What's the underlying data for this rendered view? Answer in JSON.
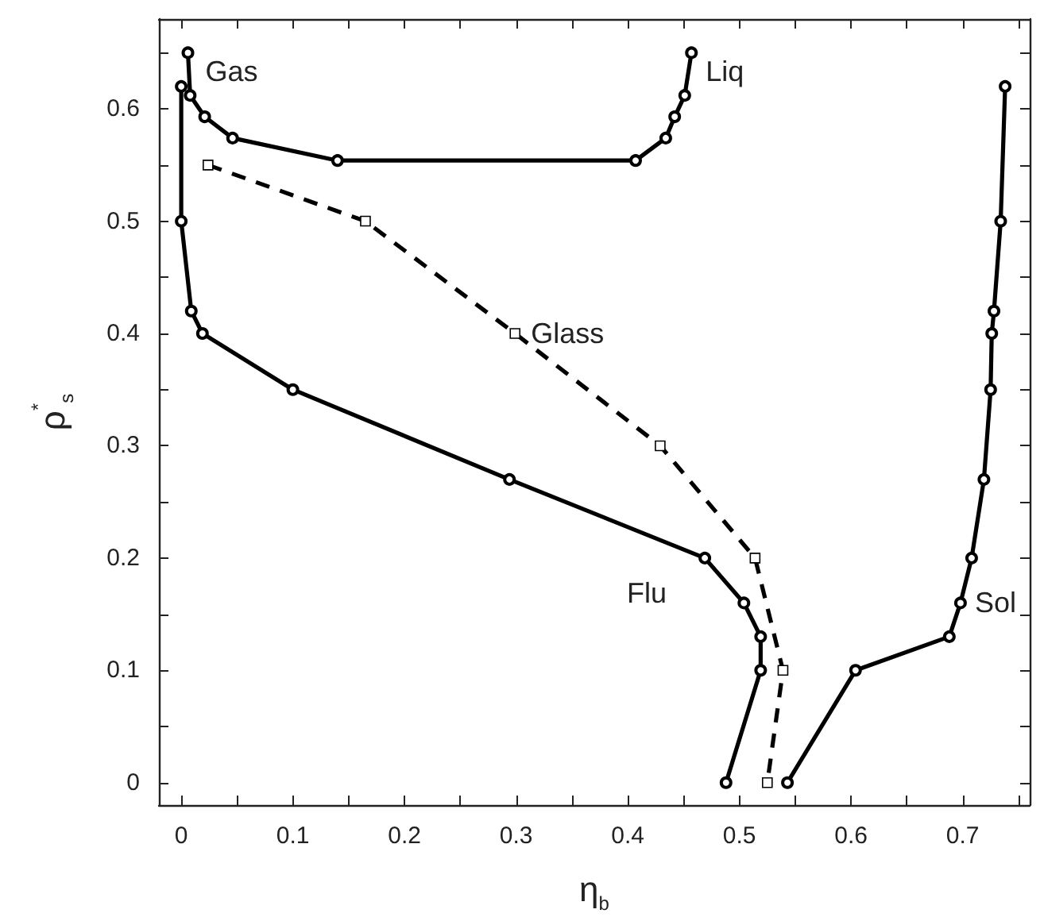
{
  "chart_data": {
    "type": "line",
    "xlabel": "η$_{b}$",
    "ylabel": "ρ$^{*}$$_{s}$",
    "xlim": [
      -0.02,
      0.76
    ],
    "ylim": [
      -0.02,
      0.68
    ],
    "xticks": [
      0,
      {
        "value": 0.05,
        "label": null
      },
      0.1,
      {
        "value": 0.15,
        "label": null
      },
      0.2,
      {
        "value": 0.25,
        "label": null
      },
      0.3,
      {
        "value": 0.35,
        "label": null
      },
      0.4,
      {
        "value": 0.45,
        "label": null
      },
      0.5,
      {
        "value": 0.55,
        "label": null
      },
      0.6,
      {
        "value": 0.65,
        "label": null
      },
      0.7,
      {
        "value": 0.75,
        "label": null
      }
    ],
    "yticks": [
      0,
      {
        "value": 0.05,
        "label": null
      },
      0.1,
      {
        "value": 0.15,
        "label": null
      },
      0.2,
      {
        "value": 0.25,
        "label": null
      },
      0.3,
      {
        "value": 0.35,
        "label": null
      },
      0.4,
      {
        "value": 0.45,
        "label": null
      },
      0.5,
      {
        "value": 0.55,
        "label": null
      },
      0.6,
      {
        "value": 0.65,
        "label": null
      }
    ],
    "grid": false,
    "series": [
      {
        "color": "#000000",
        "marker": "circle",
        "line_style": "solid",
        "x": [
          0.006,
          0.008,
          0.021,
          0.046,
          0.14,
          0.407,
          0.434,
          0.442,
          0.451,
          0.457
        ],
        "values": [
          0.65,
          0.612,
          0.593,
          0.574,
          0.554,
          0.554,
          0.574,
          0.593,
          0.612,
          0.65
        ]
      },
      {
        "color": "#000000",
        "marker": "circle",
        "line_style": "solid",
        "x": [
          0.0,
          0.0,
          0.009,
          0.019,
          0.1,
          0.294,
          0.469,
          0.504,
          0.519,
          0.519,
          0.488
        ],
        "values": [
          0.62,
          0.5,
          0.42,
          0.4,
          0.35,
          0.27,
          0.2,
          0.16,
          0.13,
          0.1,
          0.0
        ]
      },
      {
        "color": "#000000",
        "marker": "square",
        "line_style": "dashed",
        "x": [
          0.024,
          0.165,
          0.299,
          0.429,
          0.514,
          0.539,
          0.525
        ],
        "values": [
          0.55,
          0.5,
          0.4,
          0.3,
          0.2,
          0.1,
          0.0
        ]
      },
      {
        "color": "#000000",
        "marker": "circle",
        "line_style": "solid",
        "x": [
          0.543,
          0.604,
          0.688,
          0.698,
          0.708,
          0.719,
          0.725,
          0.726,
          0.728,
          0.734,
          0.738
        ],
        "values": [
          0.0,
          0.1,
          0.13,
          0.16,
          0.2,
          0.27,
          0.35,
          0.4,
          0.42,
          0.5,
          0.62
        ]
      }
    ],
    "annotations": [
      {
        "text": "Gas",
        "x": 0.006,
        "y": 0.65
      },
      {
        "text": "Liq",
        "x": 0.457,
        "y": 0.65
      },
      {
        "text": "Glass",
        "x": 0.299,
        "y": 0.4
      },
      {
        "text": "Flu",
        "x": 0.469,
        "y": 0.2
      },
      {
        "text": "Sol",
        "x": 0.698,
        "y": 0.16
      }
    ]
  }
}
